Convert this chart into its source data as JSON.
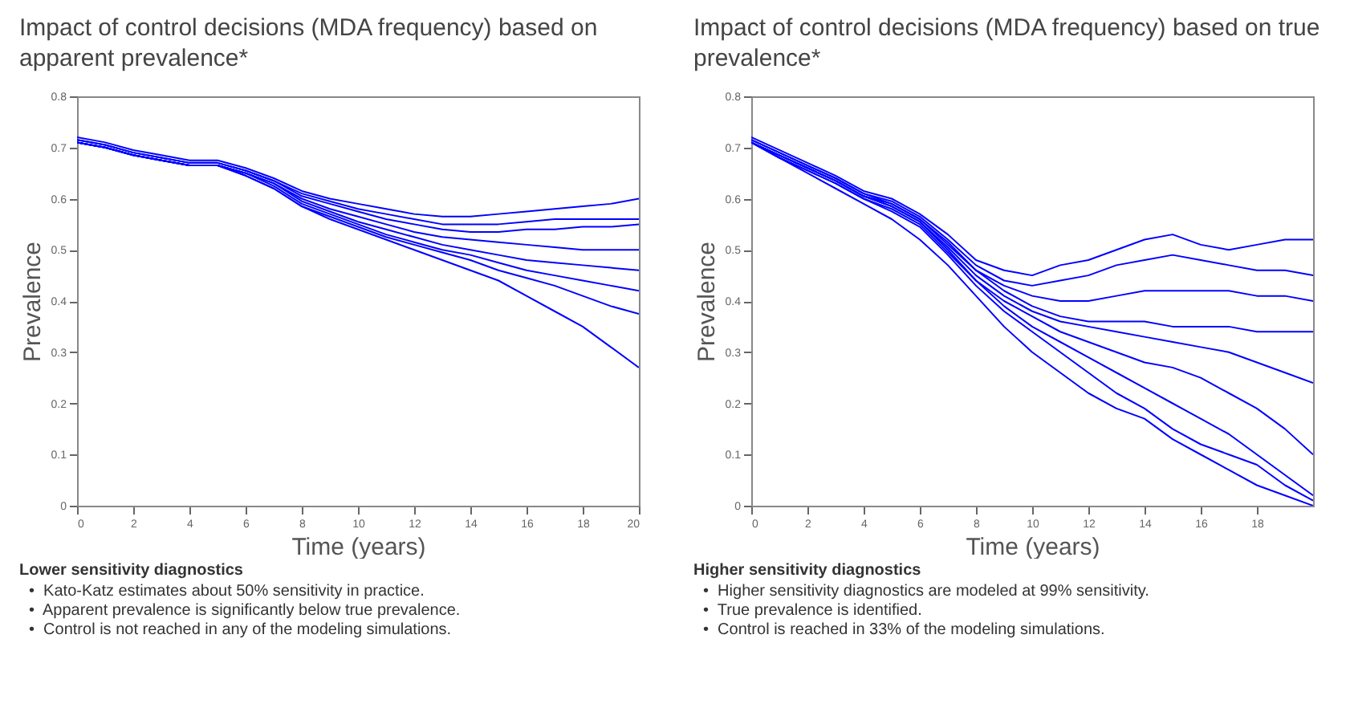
{
  "chart_data": [
    {
      "type": "line",
      "title": "Impact of control decisions (MDA frequency) based on apparent prevalence*",
      "xlabel": "Time (years)",
      "ylabel": "Prevalence",
      "x": [
        0,
        1,
        2,
        3,
        4,
        5,
        6,
        7,
        8,
        9,
        10,
        11,
        12,
        13,
        14,
        15,
        16,
        17,
        18,
        19,
        20
      ],
      "xlim": [
        0,
        20
      ],
      "ylim": [
        0,
        0.8
      ],
      "xticks": [
        0,
        2,
        4,
        6,
        8,
        10,
        12,
        14,
        16,
        18,
        20
      ],
      "yticks": [
        0,
        0.1,
        0.2,
        0.3,
        0.4,
        0.5,
        0.6,
        0.7,
        0.8
      ],
      "grid": false,
      "legend": false,
      "marker": "none",
      "line_style": "solid",
      "series": [
        {
          "color": "#0000ff",
          "values": [
            0.72,
            0.71,
            0.695,
            0.685,
            0.675,
            0.675,
            0.66,
            0.64,
            0.615,
            0.6,
            0.59,
            0.58,
            0.57,
            0.565,
            0.565,
            0.57,
            0.575,
            0.58,
            0.585,
            0.59,
            0.6
          ]
        },
        {
          "color": "#0000ff",
          "values": [
            0.715,
            0.705,
            0.69,
            0.68,
            0.67,
            0.67,
            0.655,
            0.635,
            0.61,
            0.595,
            0.58,
            0.57,
            0.56,
            0.55,
            0.55,
            0.55,
            0.555,
            0.56,
            0.56,
            0.56,
            0.56
          ]
        },
        {
          "color": "#0000ff",
          "values": [
            0.715,
            0.705,
            0.69,
            0.68,
            0.67,
            0.67,
            0.655,
            0.635,
            0.605,
            0.59,
            0.575,
            0.56,
            0.55,
            0.54,
            0.535,
            0.535,
            0.54,
            0.54,
            0.545,
            0.545,
            0.55
          ]
        },
        {
          "color": "#0000ff",
          "values": [
            0.71,
            0.7,
            0.685,
            0.675,
            0.665,
            0.665,
            0.65,
            0.63,
            0.6,
            0.58,
            0.565,
            0.55,
            0.535,
            0.525,
            0.52,
            0.515,
            0.51,
            0.505,
            0.5,
            0.5,
            0.5
          ]
        },
        {
          "color": "#0000ff",
          "values": [
            0.71,
            0.7,
            0.685,
            0.675,
            0.665,
            0.665,
            0.65,
            0.63,
            0.595,
            0.575,
            0.555,
            0.54,
            0.525,
            0.51,
            0.5,
            0.49,
            0.48,
            0.475,
            0.47,
            0.465,
            0.46
          ]
        },
        {
          "color": "#0000ff",
          "values": [
            0.71,
            0.7,
            0.685,
            0.675,
            0.665,
            0.665,
            0.65,
            0.625,
            0.59,
            0.57,
            0.55,
            0.53,
            0.515,
            0.5,
            0.49,
            0.475,
            0.46,
            0.45,
            0.44,
            0.43,
            0.42
          ]
        },
        {
          "color": "#0000ff",
          "values": [
            0.71,
            0.7,
            0.685,
            0.675,
            0.665,
            0.665,
            0.645,
            0.62,
            0.585,
            0.565,
            0.545,
            0.525,
            0.51,
            0.495,
            0.48,
            0.46,
            0.445,
            0.43,
            0.41,
            0.39,
            0.375
          ]
        },
        {
          "color": "#0000ff",
          "values": [
            0.71,
            0.7,
            0.685,
            0.675,
            0.665,
            0.665,
            0.645,
            0.62,
            0.585,
            0.56,
            0.54,
            0.52,
            0.5,
            0.48,
            0.46,
            0.44,
            0.41,
            0.38,
            0.35,
            0.31,
            0.27
          ]
        }
      ],
      "annotations": [
        "Lower sensitivity diagnostics",
        "•  Kato-Katz estimates about 50% sensitivity in practice.",
        "•  Apparent prevalence is significantly below true prevalence.",
        "•  Control is not reached in any of the modeling simulations."
      ]
    },
    {
      "type": "line",
      "title": "Impact of control decisions (MDA frequency) based on true prevalence*",
      "xlabel": "Time (years)",
      "ylabel": "Prevalence",
      "x": [
        0,
        1,
        2,
        3,
        4,
        5,
        6,
        7,
        8,
        9,
        10,
        11,
        12,
        13,
        14,
        15,
        16,
        17,
        18,
        19,
        20
      ],
      "xlim": [
        0,
        20
      ],
      "ylim": [
        0,
        0.8
      ],
      "xticks": [
        0,
        2,
        4,
        6,
        8,
        10,
        12,
        14,
        16,
        18
      ],
      "yticks": [
        0,
        0.1,
        0.2,
        0.3,
        0.4,
        0.5,
        0.6,
        0.7,
        0.8
      ],
      "grid": false,
      "legend": false,
      "marker": "none",
      "line_style": "solid",
      "series": [
        {
          "color": "#0000ff",
          "values": [
            0.72,
            0.695,
            0.67,
            0.645,
            0.615,
            0.6,
            0.57,
            0.53,
            0.48,
            0.46,
            0.45,
            0.47,
            0.48,
            0.5,
            0.52,
            0.53,
            0.51,
            0.5,
            0.51,
            0.52,
            0.52
          ]
        },
        {
          "color": "#0000ff",
          "values": [
            0.715,
            0.69,
            0.665,
            0.64,
            0.61,
            0.595,
            0.565,
            0.52,
            0.47,
            0.44,
            0.43,
            0.44,
            0.45,
            0.47,
            0.48,
            0.49,
            0.48,
            0.47,
            0.46,
            0.46,
            0.45
          ]
        },
        {
          "color": "#0000ff",
          "values": [
            0.715,
            0.69,
            0.665,
            0.64,
            0.61,
            0.59,
            0.56,
            0.515,
            0.46,
            0.43,
            0.41,
            0.4,
            0.4,
            0.41,
            0.42,
            0.42,
            0.42,
            0.42,
            0.41,
            0.41,
            0.4
          ]
        },
        {
          "color": "#0000ff",
          "values": [
            0.71,
            0.685,
            0.66,
            0.635,
            0.605,
            0.59,
            0.56,
            0.51,
            0.46,
            0.42,
            0.39,
            0.37,
            0.36,
            0.36,
            0.36,
            0.35,
            0.35,
            0.35,
            0.34,
            0.34,
            0.34
          ]
        },
        {
          "color": "#0000ff",
          "values": [
            0.71,
            0.685,
            0.66,
            0.635,
            0.605,
            0.585,
            0.555,
            0.505,
            0.45,
            0.41,
            0.38,
            0.36,
            0.35,
            0.34,
            0.33,
            0.32,
            0.31,
            0.3,
            0.28,
            0.26,
            0.24
          ]
        },
        {
          "color": "#0000ff",
          "values": [
            0.71,
            0.685,
            0.66,
            0.635,
            0.605,
            0.585,
            0.555,
            0.5,
            0.44,
            0.4,
            0.37,
            0.34,
            0.32,
            0.3,
            0.28,
            0.27,
            0.25,
            0.22,
            0.19,
            0.15,
            0.1
          ]
        },
        {
          "color": "#0000ff",
          "values": [
            0.71,
            0.68,
            0.655,
            0.63,
            0.6,
            0.58,
            0.55,
            0.495,
            0.44,
            0.39,
            0.35,
            0.32,
            0.29,
            0.26,
            0.23,
            0.2,
            0.17,
            0.14,
            0.1,
            0.06,
            0.02
          ]
        },
        {
          "color": "#0000ff",
          "values": [
            0.71,
            0.68,
            0.655,
            0.63,
            0.6,
            0.575,
            0.545,
            0.49,
            0.43,
            0.38,
            0.34,
            0.3,
            0.26,
            0.22,
            0.19,
            0.15,
            0.12,
            0.1,
            0.08,
            0.04,
            0.01
          ]
        },
        {
          "color": "#0000ff",
          "values": [
            0.71,
            0.68,
            0.65,
            0.62,
            0.59,
            0.56,
            0.52,
            0.47,
            0.41,
            0.35,
            0.3,
            0.26,
            0.22,
            0.19,
            0.17,
            0.13,
            0.1,
            0.07,
            0.04,
            0.02,
            0
          ]
        }
      ],
      "annotations": [
        "Higher sensitivity diagnostics",
        "•  Higher sensitivity diagnostics are modeled at 99% sensitivity.",
        "•  True prevalence is identified.",
        "•  Control is reached in 33% of the modeling simulations."
      ]
    }
  ]
}
